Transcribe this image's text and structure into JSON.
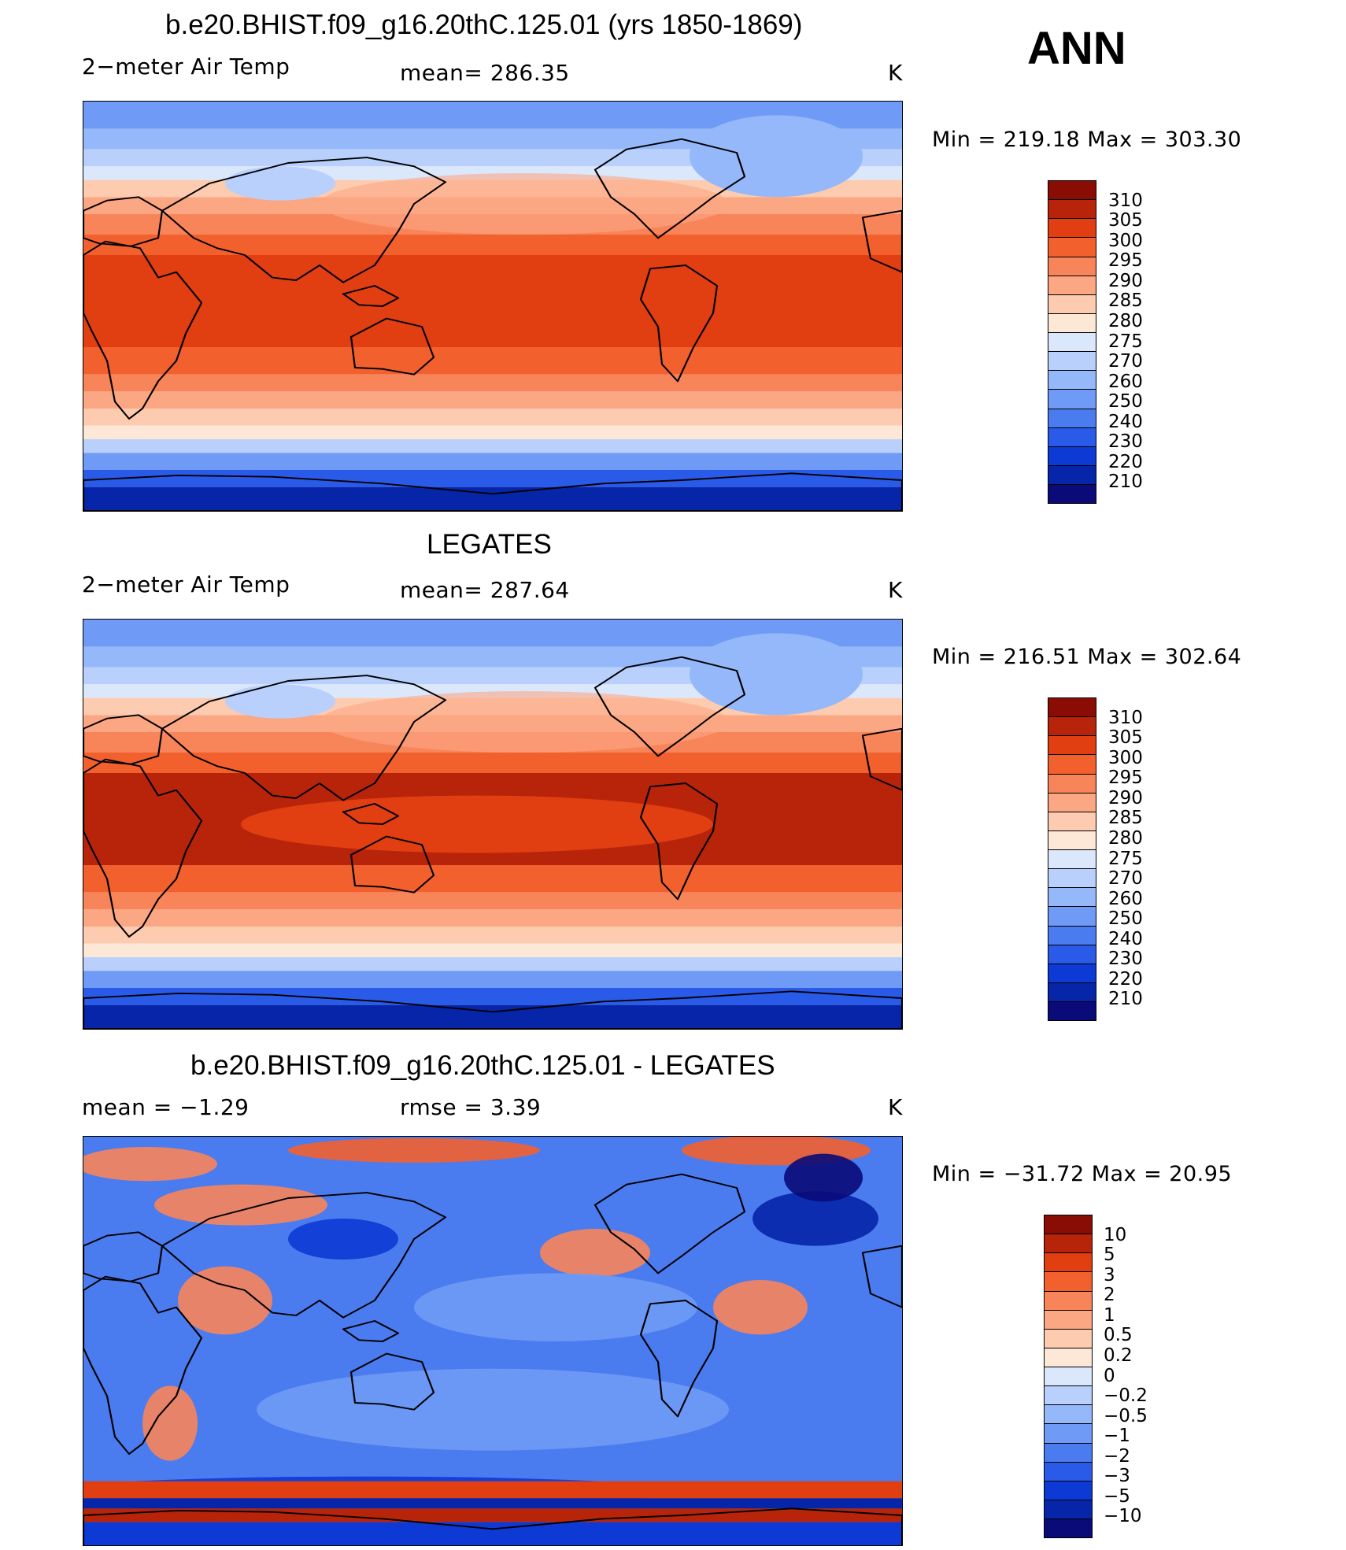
{
  "header": {
    "season": "ANN"
  },
  "colors": {
    "abs_scale": [
      "#0a0a78",
      "#0625a8",
      "#0d3ad4",
      "#2a5ae8",
      "#4a7cf0",
      "#6f9af5",
      "#95b8fa",
      "#b8d0fb",
      "#dbe8fc",
      "#fde8d8",
      "#fccbb0",
      "#fba783",
      "#f8845a",
      "#f2602e",
      "#e13e12",
      "#b8240a",
      "#8a0d05"
    ],
    "diff_scale": [
      "#0a0a78",
      "#0625a8",
      "#0d3ad4",
      "#2a5ae8",
      "#4a7cf0",
      "#6f9af5",
      "#95b8fa",
      "#b8d0fb",
      "#dbe8fc",
      "#fde8d8",
      "#fccbb0",
      "#fba783",
      "#f8845a",
      "#f2602e",
      "#e13e12",
      "#b8240a",
      "#8a0d05"
    ],
    "coast": "#000000"
  },
  "panels": [
    {
      "id": "model",
      "title": "b.e20.BHIST.f09_g16.20thC.125.01 (yrs 1850-1869)",
      "left_label": "2−meter Air Temp",
      "center_label": "mean=  286.35",
      "units": "K",
      "minmax": "Min  =  219.18  Max  =  303.30",
      "colorbar_labels": [
        "310",
        "305",
        "300",
        "295",
        "290",
        "285",
        "280",
        "275",
        "270",
        "260",
        "250",
        "240",
        "230",
        "220",
        "210"
      ]
    },
    {
      "id": "obs",
      "title": "LEGATES",
      "left_label": "2−meter Air Temp",
      "center_label": "mean=  287.64",
      "units": "K",
      "minmax": "Min  =  216.51  Max  =  302.64",
      "colorbar_labels": [
        "310",
        "305",
        "300",
        "295",
        "290",
        "285",
        "280",
        "275",
        "270",
        "260",
        "250",
        "240",
        "230",
        "220",
        "210"
      ]
    },
    {
      "id": "diff",
      "title": "b.e20.BHIST.f09_g16.20thC.125.01 - LEGATES",
      "left_label": "mean  =     −1.29",
      "center_label": "rmse  =      3.39",
      "units": "K",
      "minmax": "Min  =  −31.72  Max  =    20.95",
      "colorbar_labels": [
        "10",
        "5",
        "3",
        "2",
        "1",
        "0.5",
        "0.2",
        "0",
        "−0.2",
        "−0.5",
        "−1",
        "−2",
        "−3",
        "−5",
        "−10"
      ]
    }
  ]
}
